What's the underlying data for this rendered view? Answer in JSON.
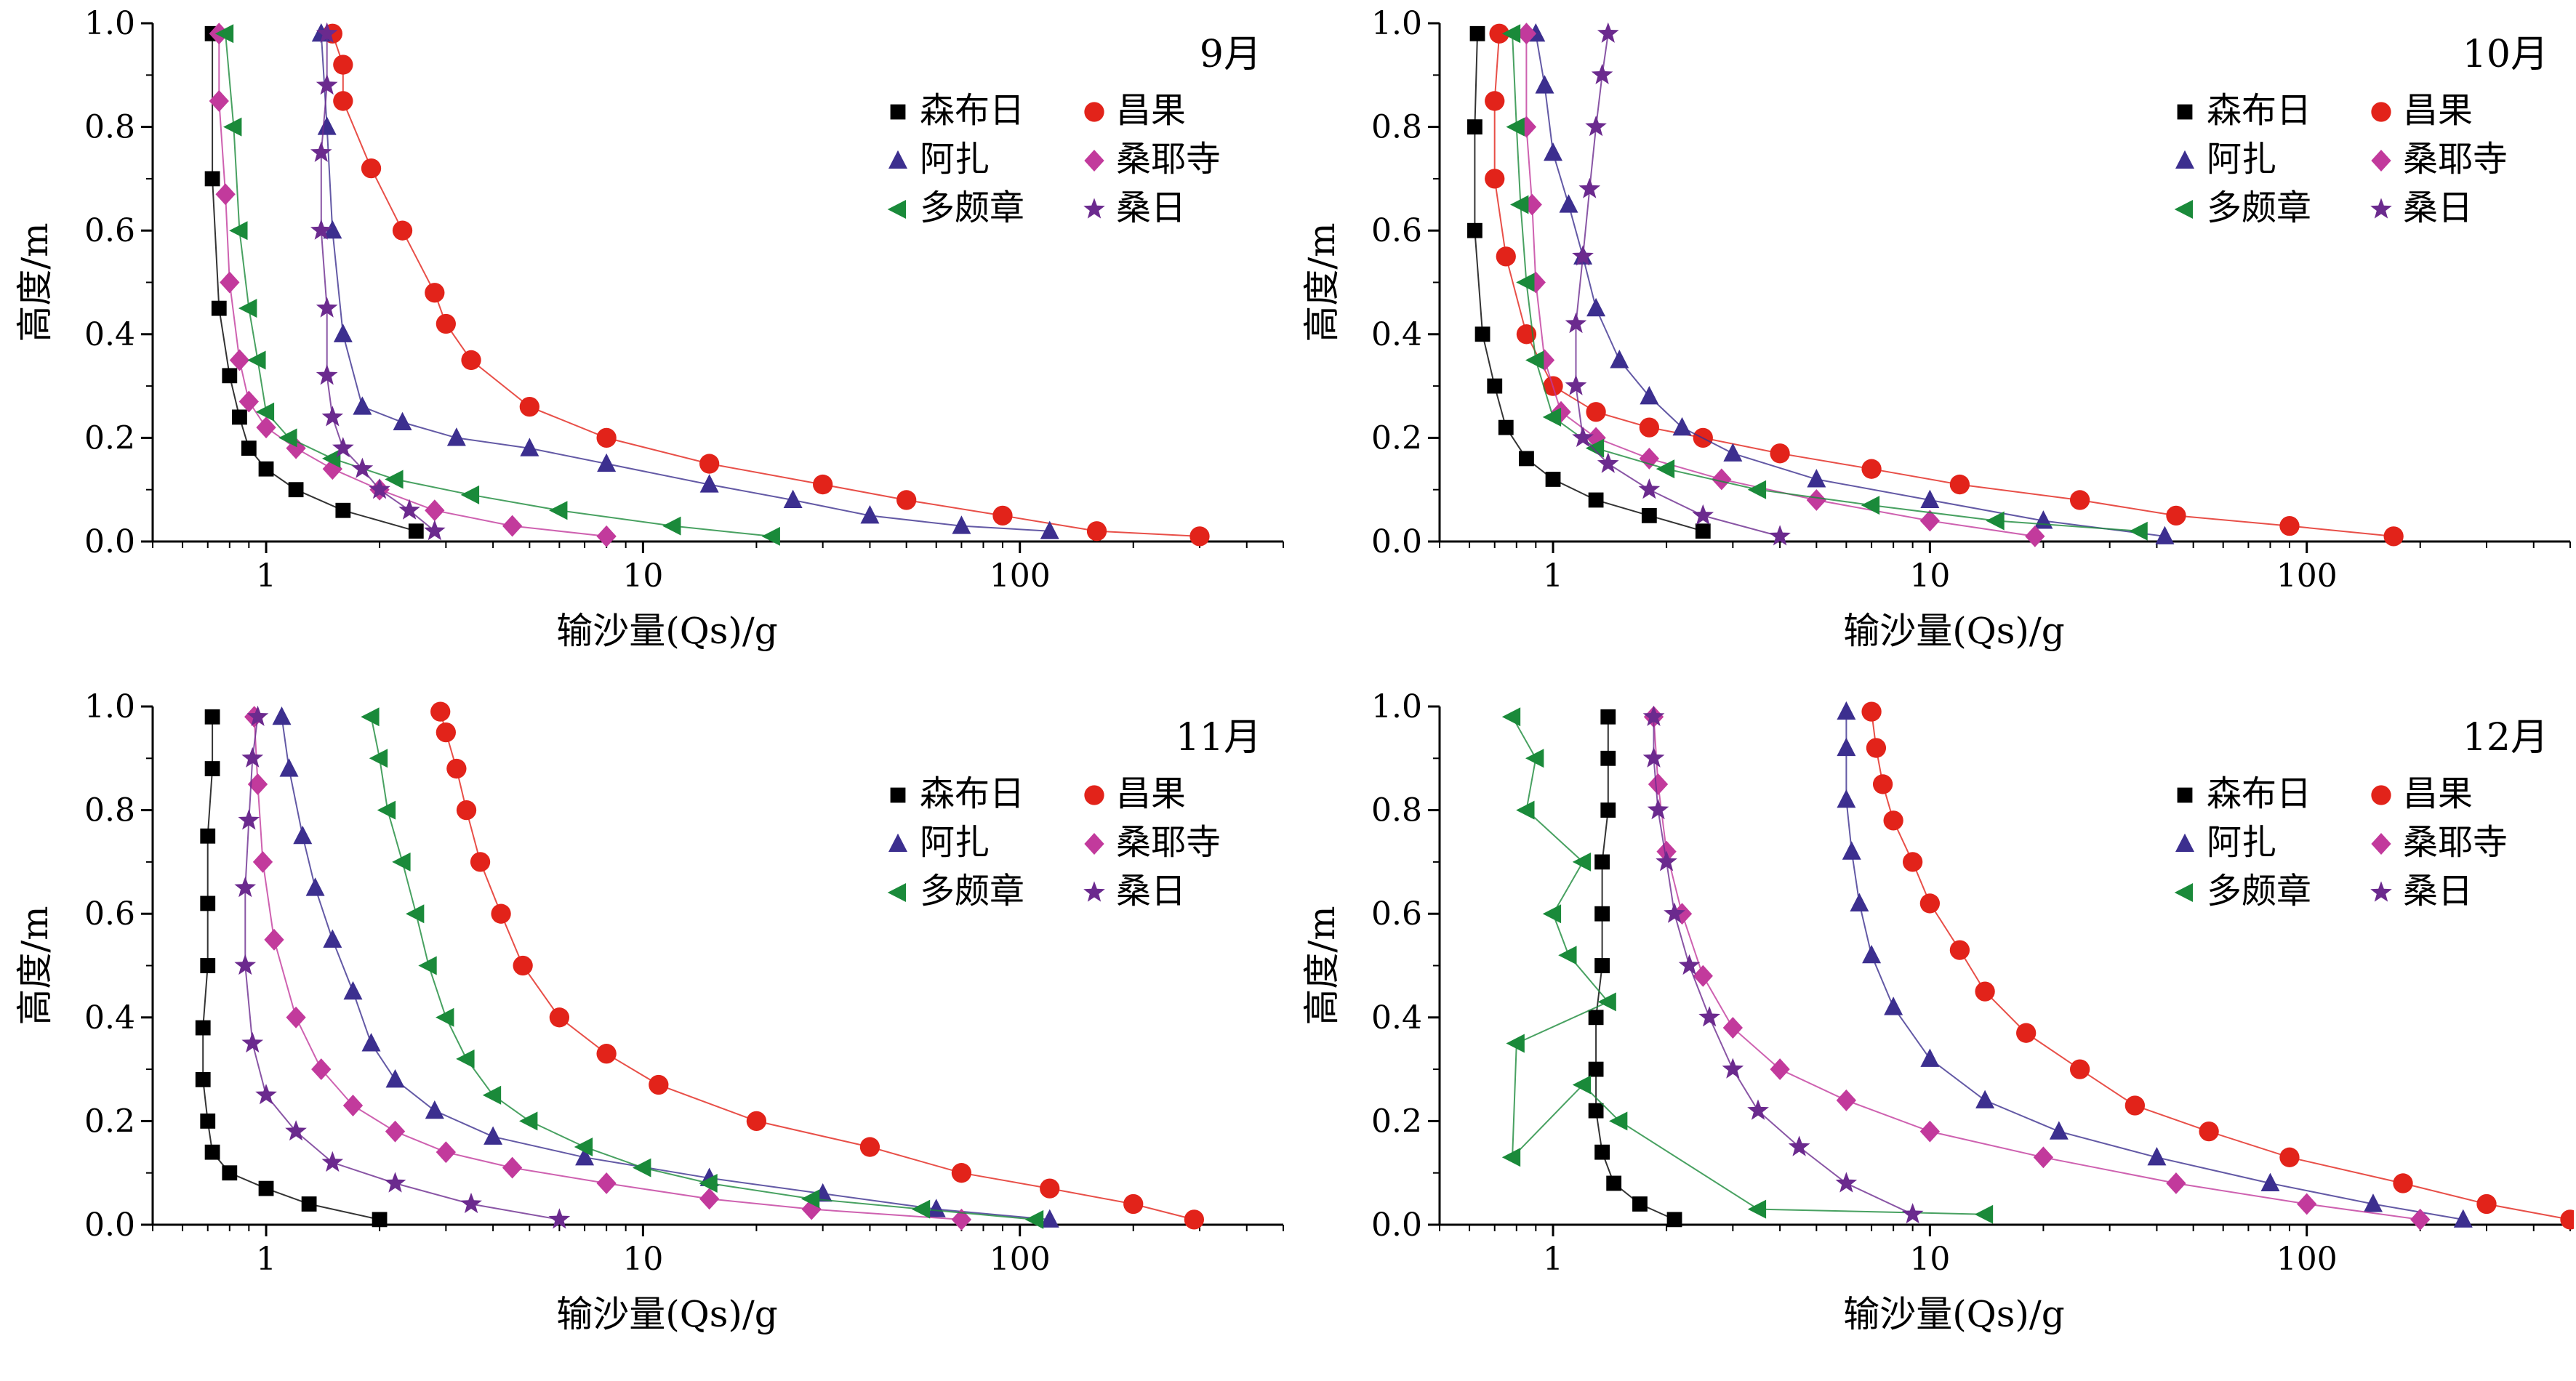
{
  "charts": [
    {
      "title": "9月"
    },
    {
      "title": "10月"
    },
    {
      "title": "11月"
    },
    {
      "title": "12月"
    }
  ],
  "chart_data": [
    {
      "type": "scatter",
      "title": "9月",
      "xlabel": "输沙量(Qs)/g",
      "ylabel": "高度/m",
      "xscale": "log",
      "xlim": [
        0.5,
        500
      ],
      "ylim": [
        0,
        1.0
      ],
      "xticks": [
        "1",
        "10",
        "100"
      ],
      "yticks": [
        "0.0",
        "0.2",
        "0.4",
        "0.6",
        "0.8",
        "1.0"
      ],
      "legend_position": "right",
      "series": [
        {
          "name": "森布日",
          "color": "#000000",
          "marker": "square",
          "x": [
            2.5,
            1.6,
            1.2,
            1.0,
            0.9,
            0.85,
            0.8,
            0.75,
            0.72,
            0.72
          ],
          "y": [
            0.02,
            0.06,
            0.1,
            0.14,
            0.18,
            0.24,
            0.32,
            0.45,
            0.7,
            0.98
          ]
        },
        {
          "name": "昌果",
          "color": "#e2231a",
          "marker": "circle",
          "x": [
            300,
            160,
            90,
            50,
            30,
            15,
            8,
            5,
            3.5,
            3.0,
            2.8,
            2.3,
            1.9,
            1.6,
            1.6,
            1.5
          ],
          "y": [
            0.01,
            0.02,
            0.05,
            0.08,
            0.11,
            0.15,
            0.2,
            0.26,
            0.35,
            0.42,
            0.48,
            0.6,
            0.72,
            0.85,
            0.92,
            0.98
          ]
        },
        {
          "name": "阿扎",
          "color": "#3c2f8f",
          "marker": "triangle",
          "x": [
            120,
            70,
            40,
            25,
            15,
            8,
            5,
            3.2,
            2.3,
            1.8,
            1.6,
            1.5,
            1.45,
            1.4
          ],
          "y": [
            0.02,
            0.03,
            0.05,
            0.08,
            0.11,
            0.15,
            0.18,
            0.2,
            0.23,
            0.26,
            0.4,
            0.6,
            0.8,
            0.98
          ]
        },
        {
          "name": "桑耶寺",
          "color": "#c23a9c",
          "marker": "diamond",
          "x": [
            8,
            4.5,
            2.8,
            2.0,
            1.5,
            1.2,
            1.0,
            0.9,
            0.85,
            0.8,
            0.78,
            0.75,
            0.75
          ],
          "y": [
            0.01,
            0.03,
            0.06,
            0.1,
            0.14,
            0.18,
            0.22,
            0.27,
            0.35,
            0.5,
            0.67,
            0.85,
            0.98
          ]
        },
        {
          "name": "多颇章",
          "color": "#1a8a3a",
          "marker": "triangle-left",
          "x": [
            22,
            12,
            6,
            3.5,
            2.2,
            1.5,
            1.15,
            1.0,
            0.95,
            0.9,
            0.85,
            0.82,
            0.78
          ],
          "y": [
            0.01,
            0.03,
            0.06,
            0.09,
            0.12,
            0.16,
            0.2,
            0.25,
            0.35,
            0.45,
            0.6,
            0.8,
            0.98
          ]
        },
        {
          "name": "桑日",
          "color": "#6b2a8e",
          "marker": "star",
          "x": [
            2.8,
            2.4,
            2.0,
            1.8,
            1.6,
            1.5,
            1.45,
            1.45,
            1.4,
            1.4,
            1.45,
            1.45
          ],
          "y": [
            0.02,
            0.06,
            0.1,
            0.14,
            0.18,
            0.24,
            0.32,
            0.45,
            0.6,
            0.75,
            0.88,
            0.98
          ]
        }
      ]
    },
    {
      "type": "scatter",
      "title": "10月",
      "xlabel": "输沙量(Qs)/g",
      "ylabel": "高度/m",
      "xscale": "log",
      "xlim": [
        0.5,
        500
      ],
      "ylim": [
        0,
        1.0
      ],
      "xticks": [
        "1",
        "10",
        "100"
      ],
      "yticks": [
        "0.0",
        "0.2",
        "0.4",
        "0.6",
        "0.8",
        "1.0"
      ],
      "legend_position": "right",
      "series": [
        {
          "name": "森布日",
          "color": "#000000",
          "marker": "square",
          "x": [
            2.5,
            1.8,
            1.3,
            1.0,
            0.85,
            0.75,
            0.7,
            0.65,
            0.62,
            0.62,
            0.63
          ],
          "y": [
            0.02,
            0.05,
            0.08,
            0.12,
            0.16,
            0.22,
            0.3,
            0.4,
            0.6,
            0.8,
            0.98
          ]
        },
        {
          "name": "昌果",
          "color": "#e2231a",
          "marker": "circle",
          "x": [
            170,
            90,
            45,
            25,
            12,
            7,
            4,
            2.5,
            1.8,
            1.3,
            1.0,
            0.85,
            0.75,
            0.7,
            0.7,
            0.72
          ],
          "y": [
            0.01,
            0.03,
            0.05,
            0.08,
            0.11,
            0.14,
            0.17,
            0.2,
            0.22,
            0.25,
            0.3,
            0.4,
            0.55,
            0.7,
            0.85,
            0.98
          ]
        },
        {
          "name": "阿扎",
          "color": "#3c2f8f",
          "marker": "triangle",
          "x": [
            42,
            20,
            10,
            5,
            3,
            2.2,
            1.8,
            1.5,
            1.3,
            1.2,
            1.1,
            1.0,
            0.95,
            0.9
          ],
          "y": [
            0.01,
            0.04,
            0.08,
            0.12,
            0.17,
            0.22,
            0.28,
            0.35,
            0.45,
            0.55,
            0.65,
            0.75,
            0.88,
            0.98
          ]
        },
        {
          "name": "桑耶寺",
          "color": "#c23a9c",
          "marker": "diamond",
          "x": [
            19,
            10,
            5,
            2.8,
            1.8,
            1.3,
            1.05,
            0.95,
            0.9,
            0.88,
            0.85,
            0.85
          ],
          "y": [
            0.01,
            0.04,
            0.08,
            0.12,
            0.16,
            0.2,
            0.25,
            0.35,
            0.5,
            0.65,
            0.8,
            0.98
          ]
        },
        {
          "name": "多颇章",
          "color": "#1a8a3a",
          "marker": "triangle-left",
          "x": [
            36,
            15,
            7,
            3.5,
            2.0,
            1.3,
            1.0,
            0.9,
            0.85,
            0.82,
            0.8,
            0.78
          ],
          "y": [
            0.02,
            0.04,
            0.07,
            0.1,
            0.14,
            0.18,
            0.24,
            0.35,
            0.5,
            0.65,
            0.8,
            0.98
          ]
        },
        {
          "name": "桑日",
          "color": "#6b2a8e",
          "marker": "star",
          "x": [
            4,
            2.5,
            1.8,
            1.4,
            1.2,
            1.15,
            1.15,
            1.2,
            1.25,
            1.3,
            1.35,
            1.4
          ],
          "y": [
            0.01,
            0.05,
            0.1,
            0.15,
            0.2,
            0.3,
            0.42,
            0.55,
            0.68,
            0.8,
            0.9,
            0.98
          ]
        }
      ]
    },
    {
      "type": "scatter",
      "title": "11月",
      "xlabel": "输沙量(Qs)/g",
      "ylabel": "高度/m",
      "xscale": "log",
      "xlim": [
        0.5,
        500
      ],
      "ylim": [
        0,
        1.0
      ],
      "xticks": [
        "1",
        "10",
        "100"
      ],
      "yticks": [
        "0.0",
        "0.2",
        "0.4",
        "0.6",
        "0.8",
        "1.0"
      ],
      "legend_position": "right",
      "series": [
        {
          "name": "森布日",
          "color": "#000000",
          "marker": "square",
          "x": [
            2.0,
            1.3,
            1.0,
            0.8,
            0.72,
            0.7,
            0.68,
            0.68,
            0.7,
            0.7,
            0.7,
            0.72,
            0.72
          ],
          "y": [
            0.01,
            0.04,
            0.07,
            0.1,
            0.14,
            0.2,
            0.28,
            0.38,
            0.5,
            0.62,
            0.75,
            0.88,
            0.98
          ]
        },
        {
          "name": "昌果",
          "color": "#e2231a",
          "marker": "circle",
          "x": [
            290,
            200,
            120,
            70,
            40,
            20,
            11,
            8,
            6,
            4.8,
            4.2,
            3.7,
            3.4,
            3.2,
            3.0,
            2.9
          ],
          "y": [
            0.01,
            0.04,
            0.07,
            0.1,
            0.15,
            0.2,
            0.27,
            0.33,
            0.4,
            0.5,
            0.6,
            0.7,
            0.8,
            0.88,
            0.95,
            0.99
          ]
        },
        {
          "name": "阿扎",
          "color": "#3c2f8f",
          "marker": "triangle",
          "x": [
            120,
            60,
            30,
            15,
            7,
            4,
            2.8,
            2.2,
            1.9,
            1.7,
            1.5,
            1.35,
            1.25,
            1.15,
            1.1
          ],
          "y": [
            0.01,
            0.03,
            0.06,
            0.09,
            0.13,
            0.17,
            0.22,
            0.28,
            0.35,
            0.45,
            0.55,
            0.65,
            0.75,
            0.88,
            0.98
          ]
        },
        {
          "name": "桑耶寺",
          "color": "#c23a9c",
          "marker": "diamond",
          "x": [
            70,
            28,
            15,
            8,
            4.5,
            3,
            2.2,
            1.7,
            1.4,
            1.2,
            1.05,
            0.98,
            0.95,
            0.93
          ],
          "y": [
            0.01,
            0.03,
            0.05,
            0.08,
            0.11,
            0.14,
            0.18,
            0.23,
            0.3,
            0.4,
            0.55,
            0.7,
            0.85,
            0.98
          ]
        },
        {
          "name": "多颇章",
          "color": "#1a8a3a",
          "marker": "triangle-left",
          "x": [
            110,
            55,
            28,
            15,
            10,
            7,
            5,
            4,
            3.4,
            3.0,
            2.7,
            2.5,
            2.3,
            2.1,
            2.0,
            1.9
          ],
          "y": [
            0.01,
            0.03,
            0.05,
            0.08,
            0.11,
            0.15,
            0.2,
            0.25,
            0.32,
            0.4,
            0.5,
            0.6,
            0.7,
            0.8,
            0.9,
            0.98
          ]
        },
        {
          "name": "桑日",
          "color": "#6b2a8e",
          "marker": "star",
          "x": [
            6,
            3.5,
            2.2,
            1.5,
            1.2,
            1.0,
            0.92,
            0.88,
            0.88,
            0.9,
            0.92,
            0.95
          ],
          "y": [
            0.01,
            0.04,
            0.08,
            0.12,
            0.18,
            0.25,
            0.35,
            0.5,
            0.65,
            0.78,
            0.9,
            0.98
          ]
        }
      ]
    },
    {
      "type": "scatter",
      "title": "12月",
      "xlabel": "输沙量(Qs)/g",
      "ylabel": "高度/m",
      "xscale": "log",
      "xlim": [
        0.5,
        500
      ],
      "ylim": [
        0,
        1.0
      ],
      "xticks": [
        "1",
        "10",
        "100"
      ],
      "yticks": [
        "0.0",
        "0.2",
        "0.4",
        "0.6",
        "0.8",
        "1.0"
      ],
      "legend_position": "right",
      "series": [
        {
          "name": "森布日",
          "color": "#000000",
          "marker": "square",
          "x": [
            2.1,
            1.7,
            1.45,
            1.35,
            1.3,
            1.3,
            1.3,
            1.35,
            1.35,
            1.35,
            1.4,
            1.4,
            1.4
          ],
          "y": [
            0.01,
            0.04,
            0.08,
            0.14,
            0.22,
            0.3,
            0.4,
            0.5,
            0.6,
            0.7,
            0.8,
            0.9,
            0.98
          ]
        },
        {
          "name": "昌果",
          "color": "#e2231a",
          "marker": "circle",
          "x": [
            500,
            300,
            180,
            90,
            55,
            35,
            25,
            18,
            14,
            12,
            10,
            9,
            8,
            7.5,
            7.2,
            7.0
          ],
          "y": [
            0.01,
            0.04,
            0.08,
            0.13,
            0.18,
            0.23,
            0.3,
            0.37,
            0.45,
            0.53,
            0.62,
            0.7,
            0.78,
            0.85,
            0.92,
            0.99
          ]
        },
        {
          "name": "阿扎",
          "color": "#3c2f8f",
          "marker": "triangle",
          "x": [
            260,
            150,
            80,
            40,
            22,
            14,
            10,
            8,
            7,
            6.5,
            6.2,
            6.0,
            6.0,
            6.0
          ],
          "y": [
            0.01,
            0.04,
            0.08,
            0.13,
            0.18,
            0.24,
            0.32,
            0.42,
            0.52,
            0.62,
            0.72,
            0.82,
            0.92,
            0.99
          ]
        },
        {
          "name": "桑耶寺",
          "color": "#c23a9c",
          "marker": "diamond",
          "x": [
            200,
            100,
            45,
            20,
            10,
            6,
            4,
            3,
            2.5,
            2.2,
            2.0,
            1.9,
            1.85
          ],
          "y": [
            0.01,
            0.04,
            0.08,
            0.13,
            0.18,
            0.24,
            0.3,
            0.38,
            0.48,
            0.6,
            0.72,
            0.85,
            0.98
          ]
        },
        {
          "name": "多颇章",
          "color": "#1a8a3a",
          "marker": "triangle-left",
          "x": [
            14,
            3.5,
            1.5,
            1.2,
            0.78,
            0.8,
            1.4,
            1.1,
            1.0,
            1.2,
            0.85,
            0.9,
            0.78
          ],
          "y": [
            0.02,
            0.03,
            0.2,
            0.27,
            0.13,
            0.35,
            0.43,
            0.52,
            0.6,
            0.7,
            0.8,
            0.9,
            0.98
          ]
        },
        {
          "name": "桑日",
          "color": "#6b2a8e",
          "marker": "star",
          "x": [
            9,
            6,
            4.5,
            3.5,
            3.0,
            2.6,
            2.3,
            2.1,
            2.0,
            1.9,
            1.85,
            1.85
          ],
          "y": [
            0.02,
            0.08,
            0.15,
            0.22,
            0.3,
            0.4,
            0.5,
            0.6,
            0.7,
            0.8,
            0.9,
            0.98
          ]
        }
      ]
    }
  ]
}
